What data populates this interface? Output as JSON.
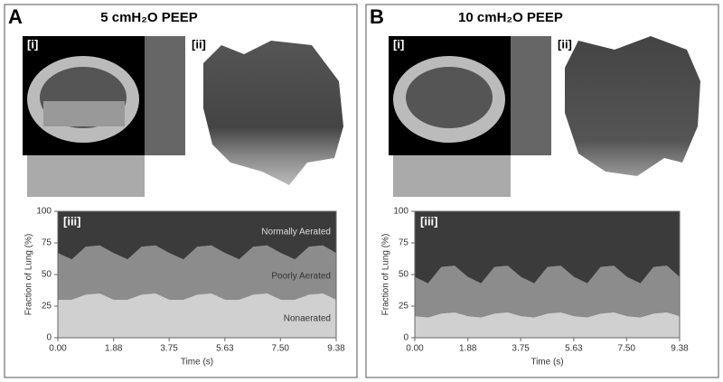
{
  "chart_data": [
    {
      "type": "area",
      "panel": "A",
      "title": "5 cmH₂O PEEP",
      "image_labels": [
        "[i]",
        "[ii]",
        "[iii]"
      ],
      "xlabel": "Time (s)",
      "ylabel": "Fraction of Lung (%)",
      "x": [
        0,
        0.47,
        0.94,
        1.41,
        1.88,
        2.35,
        2.82,
        3.29,
        3.76,
        4.23,
        4.7,
        5.17,
        5.64,
        6.11,
        6.58,
        7.05,
        7.52,
        7.99,
        8.46,
        8.93,
        9.38
      ],
      "series": [
        {
          "name": "Nonaerated",
          "color": "#d0d0d0",
          "values": [
            30,
            30,
            34,
            35,
            30,
            30,
            34,
            35,
            30,
            30,
            34,
            35,
            30,
            30,
            34,
            35,
            30,
            30,
            34,
            35,
            30
          ]
        },
        {
          "name": "Poorly Aerated",
          "color": "#8c8c8c",
          "values": [
            37,
            32,
            38,
            38,
            37,
            32,
            38,
            38,
            37,
            32,
            38,
            38,
            37,
            32,
            38,
            38,
            37,
            32,
            38,
            38,
            37
          ]
        },
        {
          "name": "Normally Aerated",
          "color": "#3b3b3b",
          "values": [
            33,
            38,
            28,
            27,
            33,
            38,
            28,
            27,
            33,
            38,
            28,
            27,
            33,
            38,
            28,
            27,
            33,
            38,
            28,
            27,
            33
          ]
        }
      ],
      "xlim": [
        0,
        9.38
      ],
      "ylim": [
        0,
        100
      ],
      "xticks": [
        {
          "value": 0,
          "label": "0.00"
        },
        {
          "value": 1.88,
          "label": "1.88"
        },
        {
          "value": 3.75,
          "label": "3.75"
        },
        {
          "value": 5.63,
          "label": "5.63"
        },
        {
          "value": 7.5,
          "label": "7.50"
        },
        {
          "value": 9.38,
          "label": "9.38"
        }
      ],
      "yticks": [
        0,
        25,
        50,
        75,
        100
      ]
    },
    {
      "type": "area",
      "panel": "B",
      "title": "10 cmH₂O PEEP",
      "image_labels": [
        "[i]",
        "[ii]",
        "[iii]"
      ],
      "xlabel": "Time (s)",
      "ylabel": "Fraction of Lung (%)",
      "x": [
        0,
        0.47,
        0.94,
        1.41,
        1.88,
        2.35,
        2.82,
        3.29,
        3.76,
        4.23,
        4.7,
        5.17,
        5.64,
        6.11,
        6.58,
        7.05,
        7.52,
        7.99,
        8.46,
        8.93,
        9.38
      ],
      "series": [
        {
          "color": "#d0d0d0",
          "values": [
            17,
            16,
            19,
            20,
            17,
            16,
            19,
            20,
            17,
            16,
            19,
            20,
            17,
            16,
            19,
            20,
            17,
            16,
            19,
            20,
            17
          ]
        },
        {
          "color": "#8c8c8c",
          "values": [
            31,
            27,
            37,
            37,
            31,
            27,
            37,
            37,
            31,
            27,
            37,
            37,
            31,
            27,
            37,
            37,
            31,
            27,
            37,
            37,
            31
          ]
        },
        {
          "color": "#3b3b3b",
          "values": [
            52,
            57,
            44,
            43,
            52,
            57,
            44,
            43,
            52,
            57,
            44,
            43,
            52,
            57,
            44,
            43,
            52,
            57,
            44,
            43,
            52
          ]
        }
      ],
      "xlim": [
        0,
        9.38
      ],
      "ylim": [
        0,
        100
      ],
      "xticks": [
        {
          "value": 0,
          "label": "0.00"
        },
        {
          "value": 1.88,
          "label": "1.88"
        },
        {
          "value": 3.75,
          "label": "3.75"
        },
        {
          "value": 5.63,
          "label": "5.63"
        },
        {
          "value": 7.5,
          "label": "7.50"
        },
        {
          "value": 9.38,
          "label": "9.38"
        }
      ],
      "yticks": [
        0,
        25,
        50,
        75,
        100
      ]
    }
  ]
}
